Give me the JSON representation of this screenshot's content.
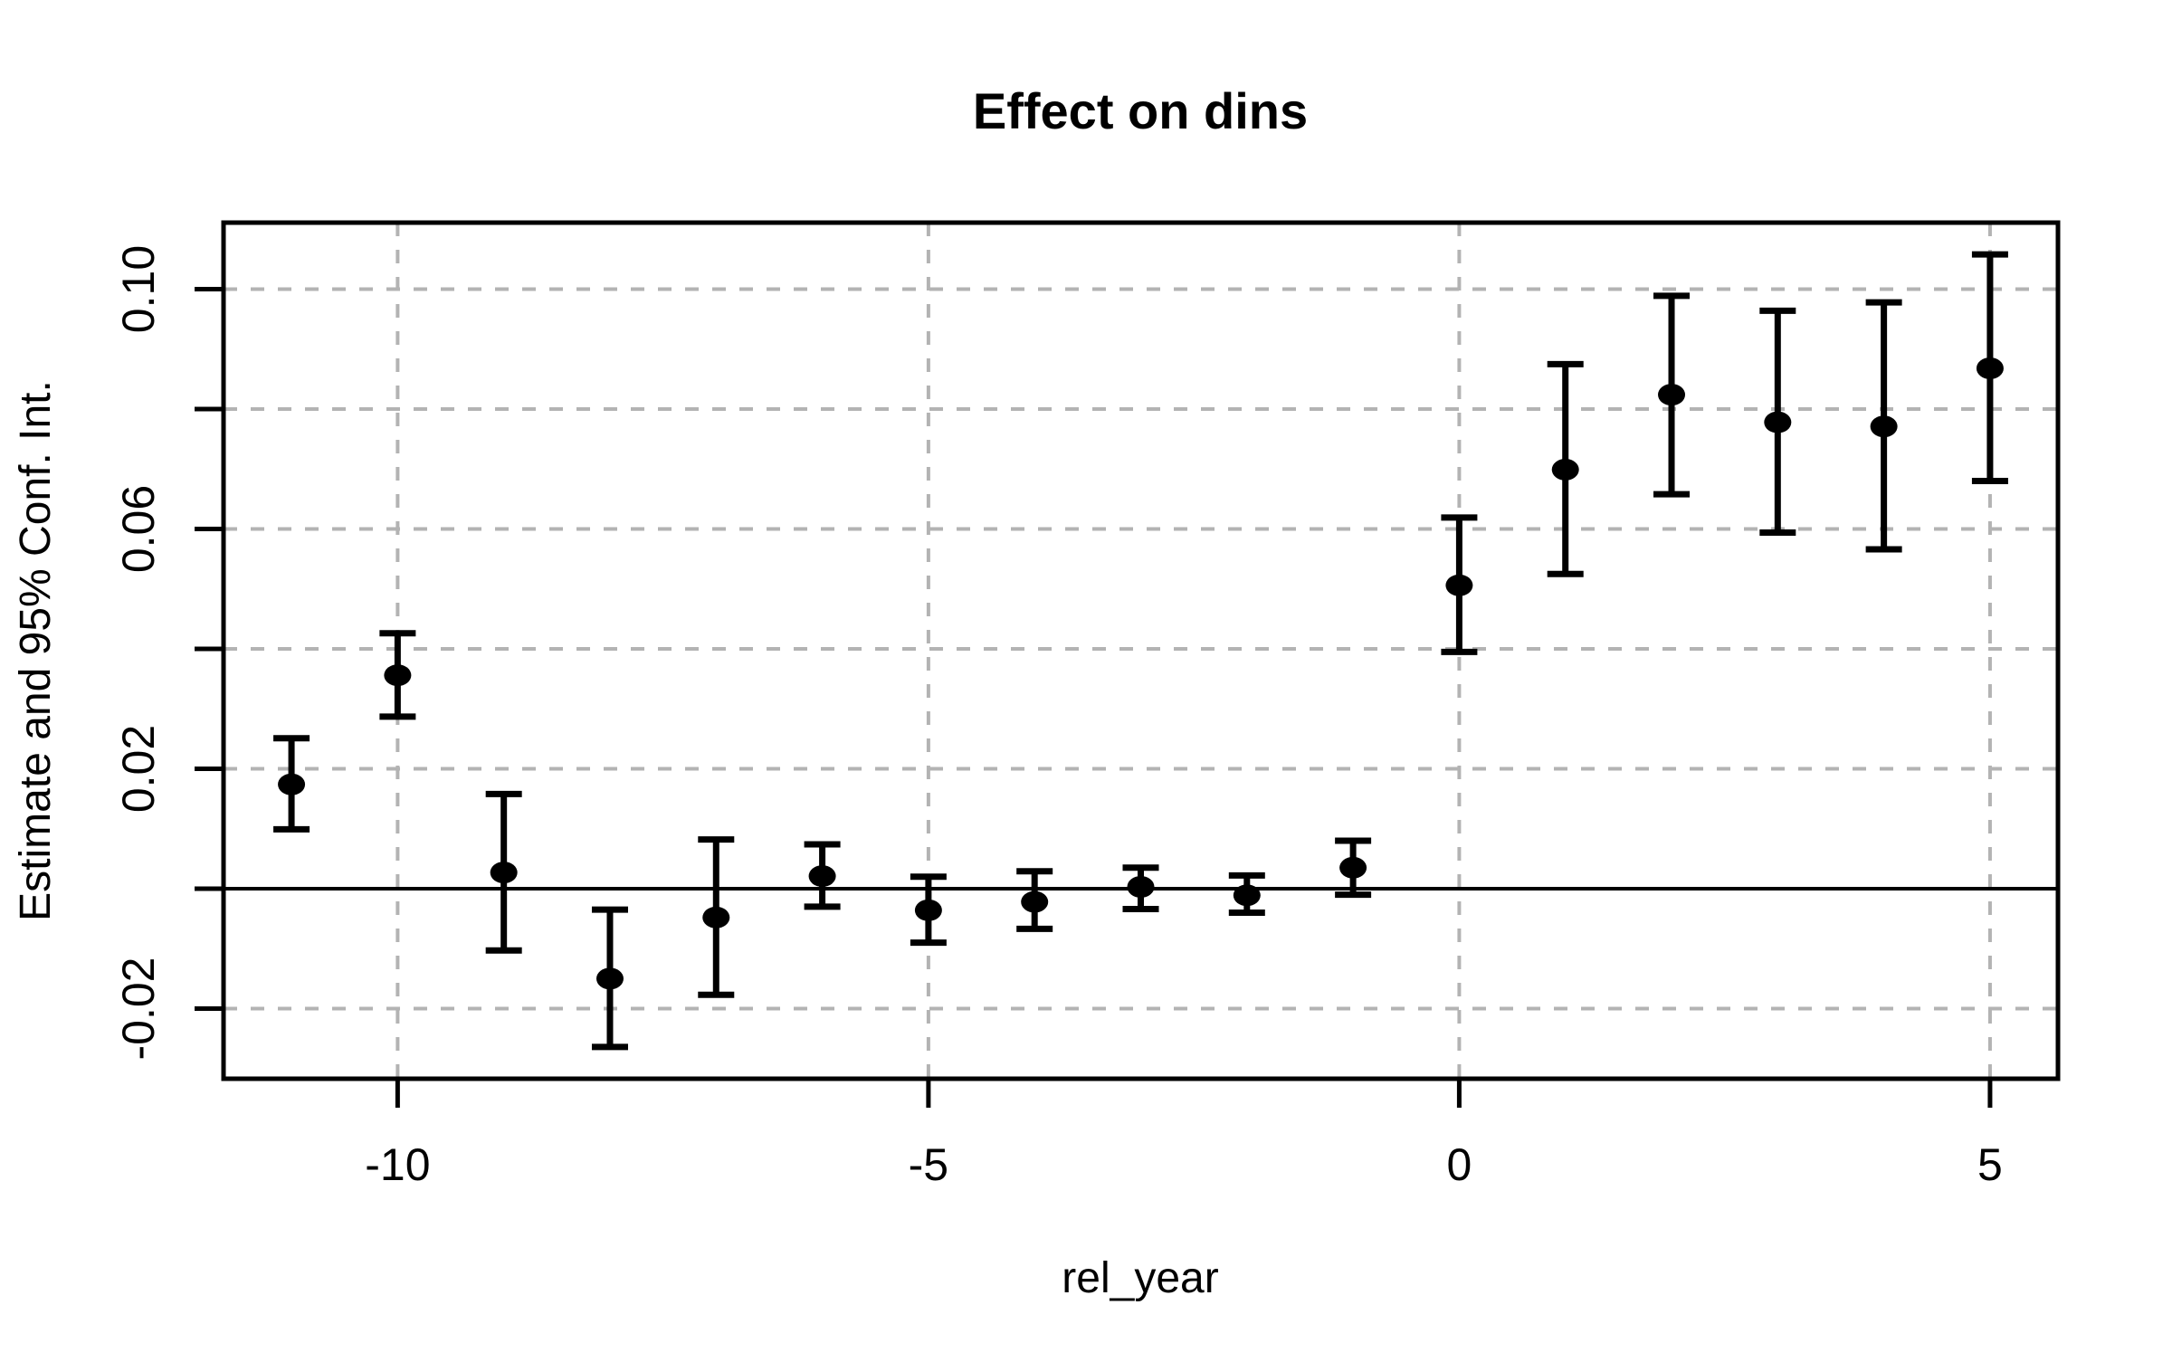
{
  "figure": {
    "title": "Effect on dins",
    "x_axis_label": "rel_year",
    "y_axis_label": "Estimate and 95% Conf. Int."
  },
  "chart_data": {
    "type": "scatter",
    "subtype": "point-estimates-with-error-bars",
    "title": "Effect on dins",
    "xlabel": "rel_year",
    "ylabel": "Estimate and 95% Conf. Int.",
    "ci_level": "95%",
    "x": [
      -11,
      -10,
      -9,
      -8,
      -7,
      -6,
      -5,
      -4,
      -3,
      -2,
      -1,
      0,
      1,
      2,
      3,
      4,
      5
    ],
    "series": [
      {
        "name": "estimate",
        "values": [
          0.0174,
          0.0356,
          0.0027,
          -0.015,
          -0.0048,
          0.0021,
          -0.0036,
          -0.0022,
          0.0003,
          -0.0011,
          0.0035,
          0.0506,
          0.0699,
          0.0824,
          0.0778,
          0.0771,
          0.0868
        ]
      },
      {
        "name": "ci_lower",
        "values": [
          0.0099,
          0.0287,
          -0.0103,
          -0.0264,
          -0.0177,
          -0.003,
          -0.009,
          -0.0067,
          -0.0034,
          -0.004,
          -0.001,
          0.0395,
          0.0525,
          0.0658,
          0.0594,
          0.0566,
          0.068
        ]
      },
      {
        "name": "ci_upper",
        "values": [
          0.0251,
          0.0426,
          0.0158,
          -0.0035,
          0.0082,
          0.0074,
          0.002,
          0.0029,
          0.0035,
          0.0022,
          0.008,
          0.0619,
          0.0875,
          0.0989,
          0.0964,
          0.0978,
          0.1058
        ]
      }
    ],
    "x_tick_values": [
      -10,
      -5,
      0,
      5
    ],
    "x_tick_labels": [
      "-10",
      "-5",
      "0",
      "5"
    ],
    "y_tick_values": [
      -0.02,
      0.0,
      0.02,
      0.04,
      0.06,
      0.08,
      0.1
    ],
    "y_tick_labels": [
      "-0.02",
      "",
      "0.02",
      "",
      "0.06",
      "",
      "0.10"
    ],
    "xlim": [
      -11.64,
      5.64
    ],
    "ylim": [
      -0.0317,
      0.1111
    ],
    "grid": true,
    "grid_style": "dashed",
    "legend": "none",
    "reference_line_y": 0,
    "colors": {
      "point": "#000000",
      "error_bar": "#000000",
      "grid": "#b3b3b3",
      "axis": "#000000",
      "reference_line": "#000000",
      "background": "#ffffff"
    }
  }
}
